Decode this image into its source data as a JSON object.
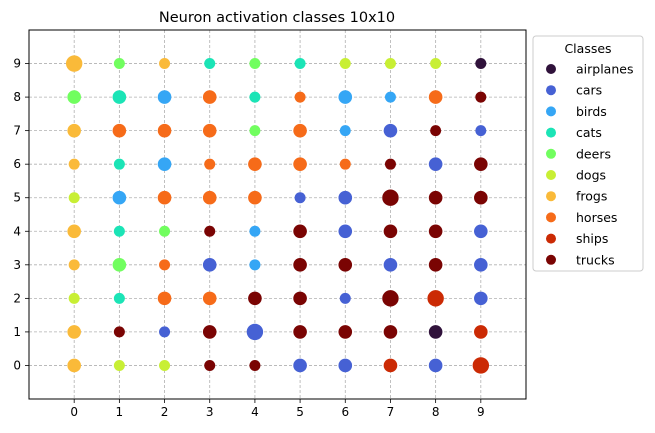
{
  "chart_data": {
    "type": "scatter",
    "title": "Neuron activation classes 10x10",
    "xlabel": "",
    "ylabel": "",
    "xlim": [
      -1,
      10
    ],
    "ylim": [
      -1,
      10
    ],
    "x_ticks": [
      0,
      1,
      2,
      3,
      4,
      5,
      6,
      7,
      8,
      9
    ],
    "y_ticks": [
      0,
      1,
      2,
      3,
      4,
      5,
      6,
      7,
      8,
      9
    ],
    "grid": true,
    "legend_title": "Classes",
    "legend_position": "outside-right",
    "classes": [
      {
        "name": "airplanes",
        "color": "#30123b"
      },
      {
        "name": "cars",
        "color": "#4661d4"
      },
      {
        "name": "birds",
        "color": "#35a6f5"
      },
      {
        "name": "cats",
        "color": "#1be4b6"
      },
      {
        "name": "deers",
        "color": "#71fe5f"
      },
      {
        "name": "dogs",
        "color": "#c8ef34"
      },
      {
        "name": "frogs",
        "color": "#faba39"
      },
      {
        "name": "horses",
        "color": "#f66b19"
      },
      {
        "name": "ships",
        "color": "#cb2a04"
      },
      {
        "name": "trucks",
        "color": "#7a0403"
      }
    ],
    "grid_classes_by_row": [
      [
        "frogs",
        "dogs",
        "dogs",
        "trucks",
        "trucks",
        "cars",
        "cars",
        "ships",
        "cars",
        "ships"
      ],
      [
        "frogs",
        "trucks",
        "cars",
        "trucks",
        "cars",
        "trucks",
        "trucks",
        "trucks",
        "airplanes",
        "ships"
      ],
      [
        "dogs",
        "cats",
        "horses",
        "horses",
        "trucks",
        "trucks",
        "cars",
        "trucks",
        "ships",
        "cars"
      ],
      [
        "frogs",
        "deers",
        "horses",
        "cars",
        "birds",
        "trucks",
        "trucks",
        "cars",
        "trucks",
        "cars"
      ],
      [
        "frogs",
        "cats",
        "deers",
        "trucks",
        "birds",
        "trucks",
        "cars",
        "trucks",
        "trucks",
        "cars"
      ],
      [
        "dogs",
        "birds",
        "horses",
        "horses",
        "horses",
        "cars",
        "cars",
        "trucks",
        "trucks",
        "trucks"
      ],
      [
        "frogs",
        "cats",
        "birds",
        "horses",
        "horses",
        "horses",
        "horses",
        "trucks",
        "cars",
        "trucks"
      ],
      [
        "frogs",
        "horses",
        "horses",
        "horses",
        "deers",
        "horses",
        "birds",
        "cars",
        "trucks",
        "cars"
      ],
      [
        "deers",
        "cats",
        "birds",
        "horses",
        "cats",
        "horses",
        "birds",
        "birds",
        "horses",
        "trucks"
      ],
      [
        "frogs",
        "deers",
        "frogs",
        "cats",
        "deers",
        "cats",
        "dogs",
        "dogs",
        "dogs",
        "airplanes"
      ]
    ],
    "marker_size_by_row": [
      [
        2,
        1,
        1,
        1,
        1,
        2,
        2,
        2,
        2,
        3
      ],
      [
        2,
        1,
        1,
        2,
        3,
        2,
        2,
        2,
        2,
        2
      ],
      [
        1,
        1,
        2,
        2,
        2,
        2,
        1,
        3,
        3,
        2
      ],
      [
        1,
        2,
        1,
        2,
        1,
        2,
        2,
        2,
        2,
        2
      ],
      [
        2,
        1,
        1,
        1,
        1,
        2,
        2,
        2,
        2,
        2
      ],
      [
        1,
        2,
        2,
        2,
        2,
        1,
        2,
        3,
        2,
        2
      ],
      [
        1,
        1,
        2,
        1,
        2,
        2,
        1,
        1,
        2,
        2
      ],
      [
        2,
        2,
        2,
        2,
        1,
        2,
        1,
        2,
        1,
        1
      ],
      [
        2,
        2,
        2,
        2,
        1,
        1,
        2,
        1,
        2,
        1
      ],
      [
        3,
        1,
        1,
        1,
        1,
        1,
        1,
        1,
        1,
        1
      ]
    ]
  }
}
